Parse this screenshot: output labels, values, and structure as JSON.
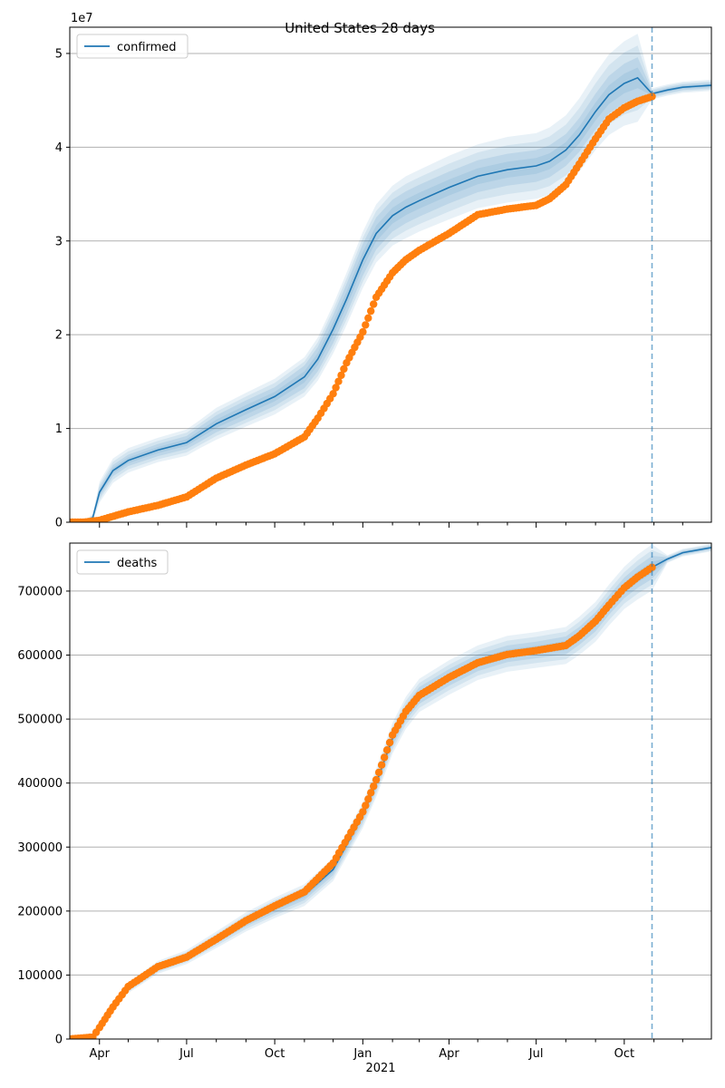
{
  "figure": {
    "title": "United States 28 days",
    "offset_label": "1e7",
    "year_label": "2021"
  },
  "chart_data": [
    {
      "type": "line",
      "name": "confirmed",
      "legend": [
        "confirmed"
      ],
      "legend_location": "upper-left",
      "grid": "y",
      "x_ticks": [
        "Apr",
        "Jul",
        "Oct",
        "Jan",
        "Apr",
        "Jul",
        "Oct"
      ],
      "y_ticks": [
        "0",
        "1",
        "2",
        "3",
        "4",
        "5"
      ],
      "ylim": [
        0,
        52800000
      ],
      "y_scale_factor": "1e7",
      "forecast_start": "2021-10-30",
      "x_range": [
        "2020-03-01",
        "2021-12-31"
      ],
      "series": [
        {
          "name": "confirmed",
          "kind": "model_fit_with_uncertainty_bands",
          "color": "#1f77b4",
          "x": [
            "2020-03-01",
            "2020-03-15",
            "2020-03-25",
            "2020-04-01",
            "2020-04-15",
            "2020-05-01",
            "2020-06-01",
            "2020-07-01",
            "2020-07-15",
            "2020-08-01",
            "2020-09-01",
            "2020-10-01",
            "2020-11-01",
            "2020-11-15",
            "2020-12-01",
            "2020-12-15",
            "2021-01-01",
            "2021-01-15",
            "2021-02-01",
            "2021-02-15",
            "2021-03-01",
            "2021-04-01",
            "2021-05-01",
            "2021-06-01",
            "2021-07-01",
            "2021-07-15",
            "2021-08-01",
            "2021-08-15",
            "2021-09-01",
            "2021-09-15",
            "2021-10-01",
            "2021-10-15",
            "2021-10-30",
            "2021-11-15",
            "2021-12-01",
            "2021-12-31"
          ],
          "values": [
            0,
            0,
            500000,
            3200000,
            5500000,
            6600000,
            7700000,
            8500000,
            9400000,
            10500000,
            12000000,
            13400000,
            15500000,
            17400000,
            20600000,
            23800000,
            28000000,
            30800000,
            32700000,
            33600000,
            34300000,
            35700000,
            36900000,
            37600000,
            38000000,
            38500000,
            39700000,
            41300000,
            43800000,
            45600000,
            46800000,
            47400000,
            45700000,
            46100000,
            46400000,
            46600000
          ],
          "band_inner_halfwidth": [
            0,
            0,
            200000,
            500000,
            600000,
            600000,
            650000,
            700000,
            800000,
            900000,
            1000000,
            1000000,
            1200000,
            1300000,
            1500000,
            1600000,
            1700000,
            1700000,
            1700000,
            1700000,
            1700000,
            1700000,
            1700000,
            1700000,
            1700000,
            1700000,
            1700000,
            1800000,
            1900000,
            2000000,
            2100000,
            2200000,
            300000,
            300000,
            300000,
            300000
          ],
          "band_outer_halfwidth": [
            0,
            0,
            400000,
            1100000,
            1300000,
            1300000,
            1300000,
            1400000,
            1500000,
            1700000,
            1800000,
            1900000,
            2100000,
            2300000,
            2600000,
            2800000,
            3000000,
            3100000,
            3200000,
            3300000,
            3300000,
            3400000,
            3400000,
            3500000,
            3500000,
            3600000,
            3700000,
            3900000,
            4100000,
            4300000,
            4500000,
            4700000,
            600000,
            600000,
            600000,
            600000
          ]
        },
        {
          "name": "observed confirmed",
          "kind": "observations",
          "color": "#ff7f0e",
          "x": [
            "2020-03-01",
            "2020-03-15",
            "2020-04-01",
            "2020-05-01",
            "2020-06-01",
            "2020-07-01",
            "2020-08-01",
            "2020-09-01",
            "2020-10-01",
            "2020-11-01",
            "2020-11-15",
            "2020-12-01",
            "2020-12-15",
            "2021-01-01",
            "2021-01-15",
            "2021-02-01",
            "2021-02-15",
            "2021-03-01",
            "2021-04-01",
            "2021-05-01",
            "2021-06-01",
            "2021-07-01",
            "2021-07-15",
            "2021-08-01",
            "2021-08-15",
            "2021-09-01",
            "2021-09-15",
            "2021-10-01",
            "2021-10-15",
            "2021-10-30"
          ],
          "values": [
            0,
            0,
            200000,
            1100000,
            1800000,
            2700000,
            4700000,
            6100000,
            7300000,
            9100000,
            11100000,
            13700000,
            17000000,
            20300000,
            24000000,
            26600000,
            28000000,
            29000000,
            30800000,
            32800000,
            33400000,
            33800000,
            34500000,
            36000000,
            38200000,
            40900000,
            43000000,
            44200000,
            44900000,
            45400000
          ]
        }
      ]
    },
    {
      "type": "line",
      "name": "deaths",
      "legend": [
        "deaths"
      ],
      "legend_location": "upper-left",
      "grid": "y",
      "x_ticks": [
        "Apr",
        "Jul",
        "Oct",
        "Jan",
        "Apr",
        "Jul",
        "Oct"
      ],
      "x_year_label": "2021",
      "y_ticks": [
        "0",
        "100000",
        "200000",
        "300000",
        "400000",
        "500000",
        "600000",
        "700000"
      ],
      "ylim": [
        0,
        775000
      ],
      "forecast_start": "2021-10-30",
      "x_range": [
        "2020-03-01",
        "2021-12-31"
      ],
      "series": [
        {
          "name": "deaths",
          "kind": "model_fit_with_uncertainty_bands",
          "color": "#1f77b4",
          "x": [
            "2020-03-01",
            "2020-03-25",
            "2020-04-01",
            "2020-04-15",
            "2020-05-01",
            "2020-06-01",
            "2020-07-01",
            "2020-08-01",
            "2020-09-01",
            "2020-10-01",
            "2020-11-01",
            "2020-12-01",
            "2021-01-01",
            "2021-01-15",
            "2021-02-01",
            "2021-02-15",
            "2021-03-01",
            "2021-04-01",
            "2021-05-01",
            "2021-06-01",
            "2021-07-01",
            "2021-08-01",
            "2021-08-15",
            "2021-09-01",
            "2021-09-15",
            "2021-10-01",
            "2021-10-15",
            "2021-10-30",
            "2021-11-15",
            "2021-12-01",
            "2021-12-31"
          ],
          "values": [
            0,
            4000,
            20000,
            50000,
            80000,
            112000,
            128000,
            155000,
            183000,
            205000,
            225000,
            265000,
            350000,
            400000,
            470000,
            510000,
            537000,
            565000,
            588000,
            602000,
            608000,
            615000,
            630000,
            652000,
            678000,
            705000,
            722000,
            737000,
            750000,
            760000,
            768000
          ],
          "band_inner_halfwidth": [
            0,
            1000,
            2000,
            3000,
            4000,
            5000,
            5000,
            6000,
            7000,
            8000,
            8000,
            9000,
            10000,
            11000,
            12000,
            12000,
            13000,
            13000,
            13000,
            13000,
            13000,
            14000,
            14000,
            15000,
            15000,
            16000,
            17000,
            18000,
            3000,
            3000,
            3000
          ],
          "band_outer_halfwidth": [
            0,
            2000,
            4000,
            6000,
            8000,
            10000,
            11000,
            13000,
            15000,
            16000,
            17000,
            18000,
            20000,
            22000,
            24000,
            25000,
            26000,
            27000,
            27000,
            28000,
            28000,
            29000,
            30000,
            31000,
            32000,
            33000,
            35000,
            36000,
            6000,
            6000,
            6000
          ]
        },
        {
          "name": "observed deaths",
          "kind": "observations",
          "color": "#ff7f0e",
          "x": [
            "2020-03-01",
            "2020-03-25",
            "2020-04-01",
            "2020-04-15",
            "2020-05-01",
            "2020-06-01",
            "2020-07-01",
            "2020-08-01",
            "2020-09-01",
            "2020-10-01",
            "2020-11-01",
            "2020-12-01",
            "2021-01-01",
            "2021-01-15",
            "2021-02-01",
            "2021-02-15",
            "2021-03-01",
            "2021-04-01",
            "2021-05-01",
            "2021-06-01",
            "2021-07-01",
            "2021-08-01",
            "2021-08-15",
            "2021-09-01",
            "2021-09-15",
            "2021-10-01",
            "2021-10-15",
            "2021-10-30"
          ],
          "values": [
            0,
            3000,
            18000,
            50000,
            82000,
            113000,
            128000,
            156000,
            185000,
            208000,
            230000,
            275000,
            355000,
            405000,
            475000,
            512000,
            537000,
            565000,
            588000,
            601000,
            607000,
            615000,
            630000,
            653000,
            678000,
            705000,
            722000,
            737000
          ]
        }
      ]
    }
  ]
}
